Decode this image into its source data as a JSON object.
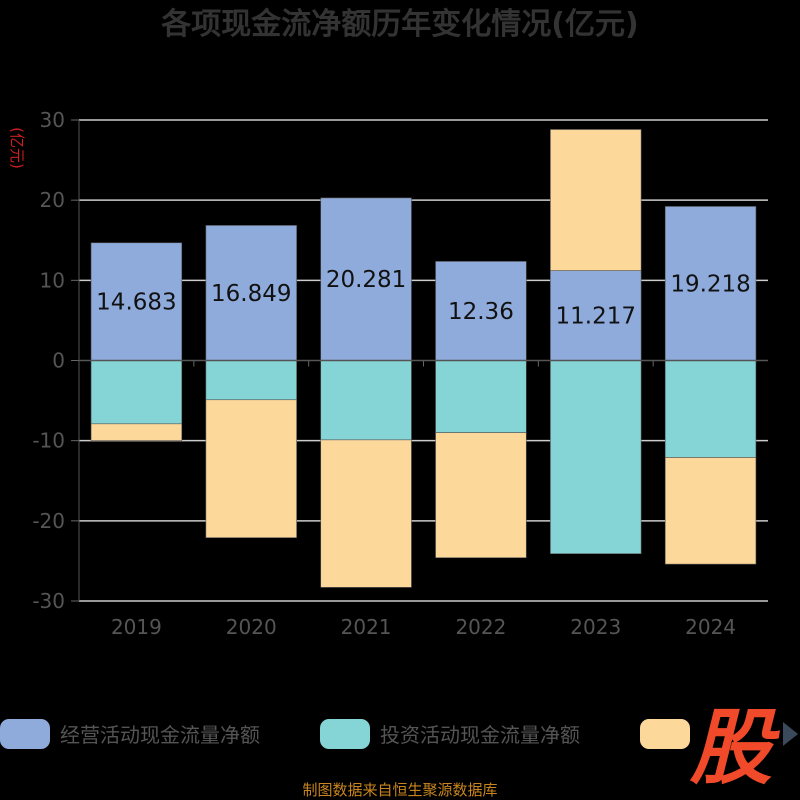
{
  "chart_data": {
    "type": "bar",
    "stacked": true,
    "title": "各项现金流净额历年变化情况(亿元)",
    "ylabel": "(亿元)",
    "categories": [
      "2019",
      "2020",
      "2021",
      "2022",
      "2023",
      "2024"
    ],
    "ylim": [
      -30,
      30
    ],
    "yticks": [
      -30,
      -20,
      -10,
      0,
      10,
      20,
      30
    ],
    "grid": true,
    "series": [
      {
        "name": "经营活动现金流量净额",
        "color": "#8fabdc",
        "values": [
          14.683,
          16.849,
          20.281,
          12.36,
          11.217,
          19.218
        ],
        "show_labels": true
      },
      {
        "name": "投资活动现金流量净额",
        "color": "#85d4d6",
        "values": [
          -7.9,
          -4.9,
          -9.9,
          -9.0,
          -24.1,
          -12.1
        ],
        "show_labels": false
      },
      {
        "name": "",
        "color": "#fdd89b",
        "values": [
          -2.1,
          -17.2,
          -18.4,
          -15.6,
          17.6,
          -13.3
        ],
        "show_labels": false
      }
    ],
    "legend_position": "bottom"
  },
  "logo": {
    "text": "股"
  },
  "source": "制图数据来自恒生聚源数据库"
}
